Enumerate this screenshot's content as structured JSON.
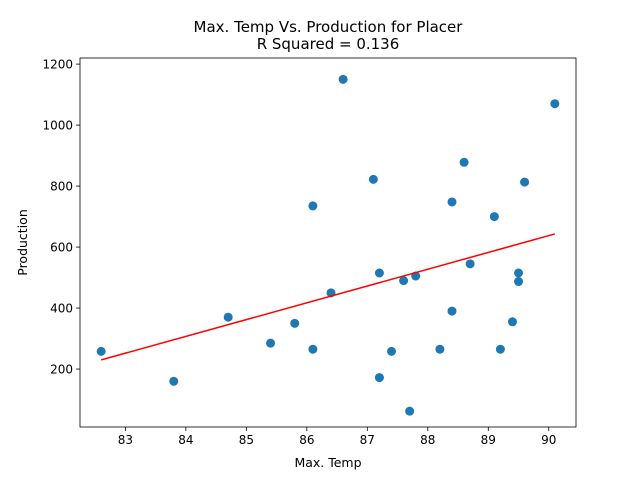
{
  "chart_data": {
    "type": "scatter",
    "title": "Max. Temp Vs. Production for Placer",
    "subtitle": "R Squared =  0.136",
    "xlabel": "Max. Temp",
    "ylabel": "Production",
    "xlim": [
      82.25,
      90.45
    ],
    "ylim": [
      10,
      1220
    ],
    "xticks": [
      83,
      84,
      85,
      86,
      87,
      88,
      89,
      90
    ],
    "yticks": [
      200,
      400,
      600,
      800,
      1000,
      1200
    ],
    "grid": false,
    "colors": {
      "points": "#1f77b4",
      "regression": "#ff0000"
    },
    "series": [
      {
        "x": [
          82.6,
          83.8,
          84.7,
          85.4,
          85.8,
          86.1,
          86.1,
          86.4,
          86.6,
          87.1,
          87.2,
          87.2,
          87.4,
          87.6,
          87.7,
          87.8,
          88.2,
          88.4,
          88.4,
          88.6,
          88.7,
          89.1,
          89.2,
          89.4,
          89.5,
          89.5,
          89.6,
          90.1
        ],
        "y": [
          258,
          160,
          370,
          285,
          350,
          265,
          735,
          450,
          1150,
          822,
          515,
          172,
          258,
          490,
          62,
          505,
          265,
          748,
          390,
          878,
          545,
          700,
          265,
          355,
          515,
          487,
          813,
          1070
        ]
      }
    ],
    "regression_line": {
      "x": [
        82.6,
        90.1
      ],
      "y": [
        230,
        643
      ]
    }
  }
}
